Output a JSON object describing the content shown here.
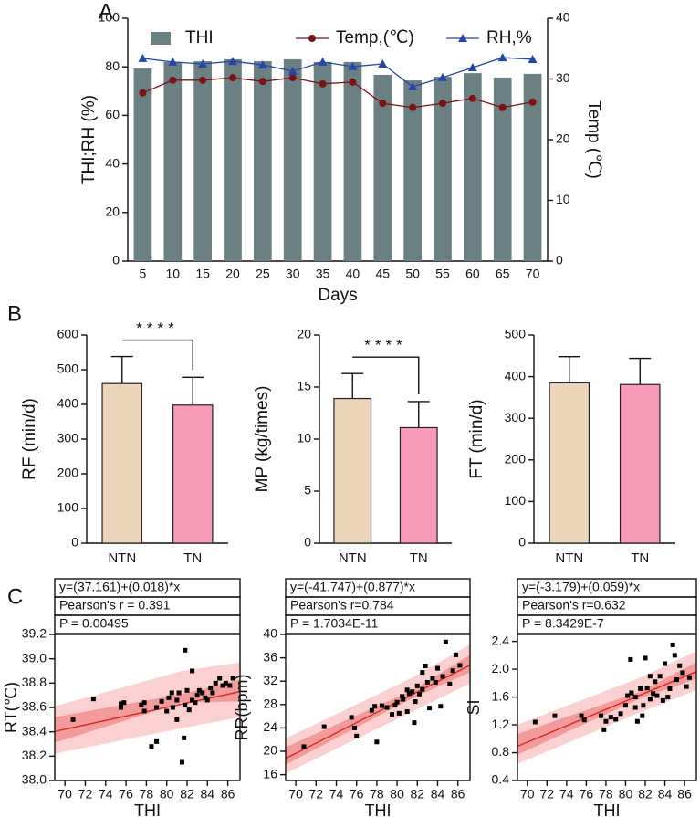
{
  "chart_data": [
    {
      "type": "bar",
      "panel": "A",
      "categories": [
        5,
        10,
        15,
        20,
        25,
        30,
        35,
        40,
        45,
        50,
        55,
        60,
        65,
        70
      ],
      "xlabel": "Days",
      "ylabel": "THI;RH (%)",
      "y2label": "Temp (℃)",
      "ylim": [
        0,
        100
      ],
      "yticks": [
        0,
        20,
        40,
        60,
        80,
        100
      ],
      "y2lim": [
        0,
        40
      ],
      "y2ticks": [
        0,
        10,
        20,
        30,
        40
      ],
      "legend": "top",
      "series": [
        {
          "name": "THI",
          "type": "bar",
          "color": "#6b8083",
          "values": [
            79.3,
            82,
            82.3,
            83.1,
            82.3,
            83.1,
            82,
            82,
            76.7,
            74.4,
            75.9,
            77.4,
            75.6,
            77.1
          ]
        },
        {
          "name": "Temp,(℃)",
          "type": "line",
          "marker": "circle",
          "color": "#7a1315",
          "axis": "y2",
          "values": [
            27.7,
            29.8,
            29.8,
            30.2,
            29.6,
            30.2,
            29.2,
            29.5,
            26,
            25.3,
            26,
            26.8,
            25.3,
            26.2
          ]
        },
        {
          "name": "RH,%",
          "type": "line",
          "marker": "triangle",
          "color": "#2546a8",
          "values": [
            83.5,
            82,
            81.2,
            82.3,
            80.8,
            78.2,
            82,
            80.1,
            81.2,
            71.8,
            75.6,
            79.7,
            83.8,
            83.1
          ]
        }
      ]
    },
    {
      "type": "bar",
      "panel": "B",
      "categories": [
        "NTN",
        "TN"
      ],
      "values": [
        460,
        398
      ],
      "errors": [
        78,
        80
      ],
      "colors": [
        "#ecd5bb",
        "#f79bb9"
      ],
      "ylim": [
        0,
        600
      ],
      "yticks": [
        0,
        100,
        200,
        300,
        400,
        500,
        600
      ],
      "ylabel": "RF (min/d)",
      "significance": "****"
    },
    {
      "type": "bar",
      "categories": [
        "NTN",
        "TN"
      ],
      "values": [
        13.9,
        11.1
      ],
      "errors": [
        2.4,
        2.5
      ],
      "colors": [
        "#ecd5bb",
        "#f79bb9"
      ],
      "ylim": [
        0,
        20
      ],
      "yticks": [
        0,
        5,
        10,
        15,
        20
      ],
      "ylabel": "MP (kg/times)",
      "significance": "****"
    },
    {
      "type": "bar",
      "categories": [
        "NTN",
        "TN"
      ],
      "values": [
        385,
        381
      ],
      "errors": [
        63,
        63
      ],
      "colors": [
        "#ecd5bb",
        "#f79bb9"
      ],
      "ylim": [
        0,
        500
      ],
      "yticks": [
        0,
        100,
        200,
        300,
        400,
        500
      ],
      "ylabel": "FT (min/d)"
    },
    {
      "type": "scatter",
      "panel": "C",
      "stats": [
        "y=(37.161)+(0.018)*x",
        "Pearson's r = 0.391",
        "P = 0.00495"
      ],
      "xlabel": "THI",
      "ylabel": "RT(℃)",
      "x": [
        70.8,
        72.8,
        75.5,
        75.8,
        75.5,
        77.5,
        77.8,
        77.8,
        78.5,
        79,
        79,
        79.5,
        80,
        80.2,
        80.5,
        80.6,
        81,
        81,
        81.2,
        81.5,
        81.7,
        81.8,
        81.8,
        82,
        82.2,
        82.5,
        82.5,
        82.8,
        83,
        83.2,
        83.5,
        83.8,
        84,
        84.3,
        84.5,
        84.8,
        85.2,
        85.5,
        85.8,
        86.2,
        86.5
      ],
      "y": [
        38.5,
        38.67,
        38.63,
        38.64,
        38.6,
        38.62,
        38.64,
        38.57,
        38.28,
        38.32,
        38.6,
        38.65,
        38.57,
        38.68,
        38.72,
        38.6,
        38.66,
        38.5,
        38.72,
        38.15,
        38.35,
        39.07,
        38.62,
        38.74,
        38.58,
        38.9,
        38.66,
        38.64,
        38.7,
        38.74,
        38.72,
        38.68,
        38.66,
        38.76,
        38.72,
        38.8,
        38.84,
        38.78,
        38.8,
        38.78,
        38.84
      ],
      "xlim": [
        69,
        87.2
      ],
      "xticks": [
        70,
        72,
        74,
        76,
        78,
        80,
        82,
        84,
        86
      ],
      "ylim": [
        38,
        39.2
      ],
      "yticks": [
        {
          "value": 38,
          "label": "38.0"
        },
        38.2,
        38.4,
        38.6,
        38.8,
        {
          "value": 39,
          "label": "39.0"
        },
        39.2
      ],
      "fit": {
        "intercept": 37.161,
        "slope": 0.018,
        "color": "#d42a20"
      },
      "bands": [
        {
          "x": [
            69,
            81.5,
            87.2
          ],
          "lower": [
            38.22,
            38.43,
            38.52
          ],
          "upper": [
            38.61,
            38.9,
            38.97
          ],
          "color": "#fbd0d0"
        },
        {
          "x": [
            69,
            81.5,
            87.2
          ],
          "lower": [
            38.31,
            38.64,
            38.65
          ],
          "upper": [
            38.52,
            38.71,
            38.83
          ],
          "color": "#f39a9a"
        }
      ]
    },
    {
      "type": "scatter",
      "stats": [
        "y=(-41.747)+(0.877)*x",
        "Pearson's r=0.784",
        "P = 1.7034E-11"
      ],
      "xlabel": "THI",
      "ylabel": "RR(bpm)",
      "x": [
        70.8,
        72.8,
        75.5,
        75.8,
        76,
        77.5,
        77.8,
        78,
        78.5,
        79,
        79.5,
        79.8,
        80,
        80.2,
        80.5,
        80.6,
        81,
        81,
        81.2,
        81.5,
        81.7,
        81.8,
        82,
        82.2,
        82.5,
        82.5,
        82.8,
        83,
        83.2,
        83.5,
        83.8,
        84,
        84.3,
        84.5,
        84.8,
        85.2,
        85.5,
        85.8,
        86.2
      ],
      "y": [
        20.8,
        24.2,
        25.8,
        24,
        22.6,
        27,
        27.7,
        21.6,
        27.8,
        27.5,
        26.3,
        27.9,
        28.4,
        26.5,
        29.4,
        28.9,
        30.5,
        26.8,
        29.9,
        30.2,
        24.9,
        28.5,
        31.2,
        29.8,
        33.5,
        30.6,
        34.6,
        31.8,
        27.4,
        32.5,
        31.8,
        34.2,
        27.7,
        32.8,
        38.7,
        31.5,
        33.8,
        36.5,
        34.7
      ],
      "xlim": [
        69,
        87.2
      ],
      "xticks": [
        70,
        72,
        74,
        76,
        78,
        80,
        82,
        84,
        86
      ],
      "ylim": [
        15,
        40
      ],
      "yticks": [
        16,
        20,
        24,
        28,
        32,
        36,
        40
      ],
      "fit": {
        "intercept": -41.747,
        "slope": 0.877,
        "color": "#d42a20"
      },
      "bands": [
        {
          "x": [
            69,
            81.5,
            87.2
          ],
          "lower": [
            16.2,
            26.8,
            31.6
          ],
          "upper": [
            22.2,
            32.6,
            38.3
          ],
          "color": "#fbd0d0"
        },
        {
          "x": [
            69,
            81.5,
            87.2
          ],
          "lower": [
            17.7,
            29.1,
            33.5
          ],
          "upper": [
            20.7,
            30.4,
            36.5
          ],
          "color": "#f39a9a"
        }
      ]
    },
    {
      "type": "scatter",
      "stats": [
        "y=(-3.179)+(0.059)*x",
        "Pearson's r=0.632",
        "P = 8.3429E-7"
      ],
      "xlabel": "THI",
      "ylabel": "SI",
      "x": [
        70.8,
        72.8,
        75.5,
        75.8,
        77.5,
        77.8,
        78,
        78.5,
        79,
        79.5,
        80,
        80.2,
        80.5,
        80.6,
        81,
        81,
        81.2,
        81.5,
        81.7,
        81.8,
        82,
        82.2,
        82.5,
        82.5,
        82.8,
        83,
        83.2,
        83.5,
        83.8,
        84,
        84.3,
        84.5,
        84.8,
        85,
        85.2,
        85.5,
        85.8,
        86.2,
        86.5
      ],
      "y": [
        1.24,
        1.33,
        1.33,
        1.27,
        1.33,
        1.13,
        1.25,
        1.31,
        1.28,
        1.36,
        1.48,
        1.62,
        2.14,
        1.66,
        1.6,
        1.45,
        1.25,
        1.72,
        1.33,
        1.48,
        2.16,
        1.73,
        1.9,
        1.57,
        1.65,
        1.82,
        1.62,
        1.9,
        1.55,
        2.08,
        1.6,
        1.72,
        2.35,
        2.2,
        1.85,
        2.05,
        1.95,
        1.75,
        1.88
      ],
      "xlim": [
        69,
        87.2
      ],
      "xticks": [
        70,
        72,
        74,
        76,
        78,
        80,
        82,
        84,
        86
      ],
      "ylim": [
        0.4,
        2.5
      ],
      "yticks": [
        0.4,
        0.8,
        1.2,
        1.6,
        {
          "value": 2,
          "label": "2.0"
        },
        2.4
      ],
      "fit": {
        "intercept": -3.179,
        "slope": 0.059,
        "color": "#d42a20"
      },
      "bands": [
        {
          "x": [
            69,
            81.5,
            87.2
          ],
          "lower": [
            0.64,
            1.38,
            1.7
          ],
          "upper": [
            1.2,
            1.88,
            2.26
          ],
          "color": "#fbd0d0"
        },
        {
          "x": [
            69,
            81.5,
            87.2
          ],
          "lower": [
            0.77,
            1.58,
            1.86
          ],
          "upper": [
            1.07,
            1.68,
            2.1
          ],
          "color": "#f39a9a"
        }
      ]
    }
  ]
}
